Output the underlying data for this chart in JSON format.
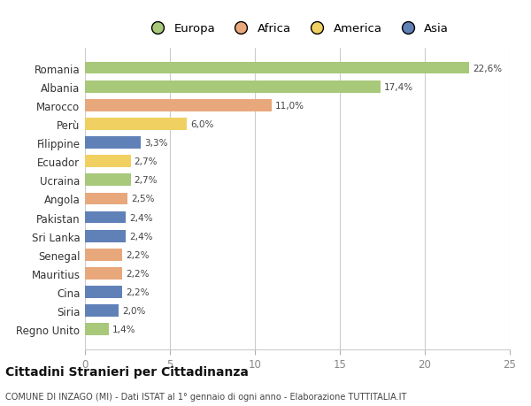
{
  "categories": [
    "Romania",
    "Albania",
    "Marocco",
    "Perù",
    "Filippine",
    "Ecuador",
    "Ucraina",
    "Angola",
    "Pakistan",
    "Sri Lanka",
    "Senegal",
    "Mauritius",
    "Cina",
    "Siria",
    "Regno Unito"
  ],
  "values": [
    22.6,
    17.4,
    11.0,
    6.0,
    3.3,
    2.7,
    2.7,
    2.5,
    2.4,
    2.4,
    2.2,
    2.2,
    2.2,
    2.0,
    1.4
  ],
  "labels": [
    "22,6%",
    "17,4%",
    "11,0%",
    "6,0%",
    "3,3%",
    "2,7%",
    "2,7%",
    "2,5%",
    "2,4%",
    "2,4%",
    "2,2%",
    "2,2%",
    "2,2%",
    "2,0%",
    "1,4%"
  ],
  "continents": [
    "Europa",
    "Europa",
    "Africa",
    "America",
    "Asia",
    "America",
    "Europa",
    "Africa",
    "Asia",
    "Asia",
    "Africa",
    "Africa",
    "Asia",
    "Asia",
    "Europa"
  ],
  "continent_colors": {
    "Europa": "#a8c87a",
    "Africa": "#e8a87c",
    "America": "#f0d060",
    "Asia": "#6080b8"
  },
  "legend_order": [
    "Europa",
    "Africa",
    "America",
    "Asia"
  ],
  "xlim": [
    0,
    25
  ],
  "xticks": [
    0,
    5,
    10,
    15,
    20,
    25
  ],
  "title": "Cittadini Stranieri per Cittadinanza",
  "subtitle": "COMUNE DI INZAGO (MI) - Dati ISTAT al 1° gennaio di ogni anno - Elaborazione TUTTITALIA.IT",
  "background_color": "#ffffff",
  "grid_color": "#cccccc"
}
